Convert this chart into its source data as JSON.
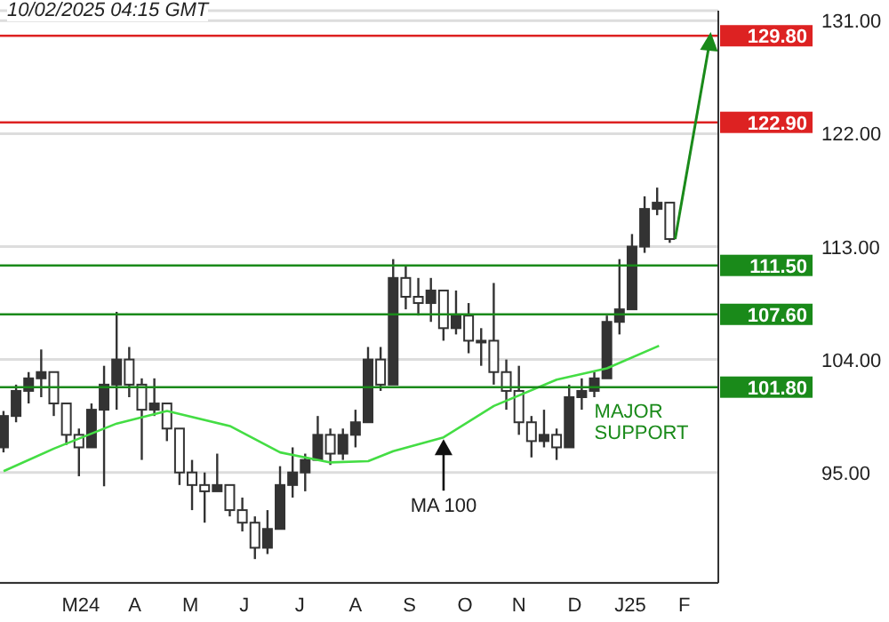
{
  "chart_data": {
    "type": "candlestick",
    "annotations": [
      "10/02/2025 04:15 GMT",
      {
        "text": "MA 100",
        "x": "2024-10-04",
        "y": 97.8
      },
      {
        "text": "MAJOR SUPPORT",
        "x": "2024-12-27",
        "y": 101.8
      }
    ],
    "series": [
      {
        "type": "candlestick",
        "color": "#333333",
        "x": [
          "2024-02-02",
          "2024-02-09",
          "2024-02-16",
          "2024-02-23",
          "2024-03-01",
          "2024-03-08",
          "2024-03-15",
          "2024-03-22",
          "2024-03-29",
          "2024-04-05",
          "2024-04-12",
          "2024-04-19",
          "2024-04-26",
          "2024-05-03",
          "2024-05-10",
          "2024-05-17",
          "2024-05-24",
          "2024-05-31",
          "2024-06-07",
          "2024-06-14",
          "2024-06-21",
          "2024-06-28",
          "2024-07-05",
          "2024-07-12",
          "2024-07-19",
          "2024-07-26",
          "2024-08-02",
          "2024-08-09",
          "2024-08-16",
          "2024-08-23",
          "2024-08-30",
          "2024-09-06",
          "2024-09-13",
          "2024-09-20",
          "2024-09-27",
          "2024-10-04",
          "2024-10-11",
          "2024-10-18",
          "2024-10-25",
          "2024-11-01",
          "2024-11-08",
          "2024-11-15",
          "2024-11-22",
          "2024-11-29",
          "2024-12-06",
          "2024-12-13",
          "2024-12-20",
          "2024-12-27",
          "2025-01-03",
          "2025-01-10",
          "2025-01-17",
          "2025-01-24",
          "2025-01-31",
          "2025-02-07"
        ],
        "ohlc": [
          [
            97,
            99.9,
            96.6,
            99.5
          ],
          [
            99.5,
            102,
            99,
            101.5
          ],
          [
            101.5,
            103,
            100.5,
            102.5
          ],
          [
            102.5,
            104.8,
            101,
            103
          ],
          [
            103,
            103,
            99.5,
            100.5
          ],
          [
            100.5,
            100.5,
            97.2,
            98
          ],
          [
            98,
            98.5,
            94.7,
            97
          ],
          [
            97,
            100.5,
            97,
            100
          ],
          [
            100,
            103.5,
            93.9,
            102
          ],
          [
            102,
            107.8,
            100,
            104
          ],
          [
            104,
            105,
            101,
            102
          ],
          [
            102,
            102.5,
            96,
            100
          ],
          [
            100,
            102.5,
            99.5,
            100.5
          ],
          [
            100.5,
            100.5,
            97.5,
            98.5
          ],
          [
            98.5,
            98.5,
            94,
            95
          ],
          [
            95,
            96,
            92,
            94
          ],
          [
            94,
            95,
            91,
            93.5
          ],
          [
            93.5,
            96.5,
            93.5,
            94
          ],
          [
            94,
            94,
            91.5,
            92
          ],
          [
            92,
            93,
            90.3,
            91
          ],
          [
            91,
            91.5,
            88.1,
            89
          ],
          [
            89,
            92,
            88.5,
            90.5
          ],
          [
            90.5,
            95.5,
            90.5,
            94
          ],
          [
            94,
            97,
            93,
            95
          ],
          [
            95,
            96.5,
            93.5,
            96
          ],
          [
            96,
            99.5,
            96,
            98
          ],
          [
            98,
            98.5,
            95.6,
            96.5
          ],
          [
            96.5,
            98.5,
            96,
            98
          ],
          [
            98,
            100,
            97,
            99
          ],
          [
            99,
            105,
            99,
            104
          ],
          [
            104,
            105,
            101.5,
            102
          ],
          [
            102,
            112,
            102,
            110.5
          ],
          [
            110.5,
            111.5,
            108,
            109
          ],
          [
            109,
            110.5,
            107.5,
            108.5
          ],
          [
            108.5,
            110.5,
            107,
            109.5
          ],
          [
            109.5,
            109.5,
            105.5,
            106.5
          ],
          [
            106.5,
            109.5,
            106,
            107.5
          ],
          [
            107.5,
            108.5,
            104.5,
            105.5
          ],
          [
            105.5,
            106.5,
            103.5,
            105.5
          ],
          [
            105.5,
            110.1,
            102,
            103
          ],
          [
            103,
            104,
            100,
            101.5
          ],
          [
            101.5,
            103.5,
            98,
            99
          ],
          [
            99,
            99.5,
            96.2,
            97.5
          ],
          [
            97.5,
            100,
            97,
            98
          ],
          [
            98,
            98.5,
            96,
            97
          ],
          [
            97,
            102,
            97,
            101
          ],
          [
            101,
            102.5,
            100,
            101.5
          ],
          [
            101.5,
            103,
            101,
            102.5
          ],
          [
            102.5,
            107.5,
            102.5,
            107
          ],
          [
            107,
            112,
            106,
            108
          ],
          [
            108,
            114,
            108,
            113
          ],
          [
            113,
            117,
            112.5,
            116
          ],
          [
            116,
            117.7,
            115.5,
            116.5
          ],
          [
            116.5,
            116.5,
            113.3,
            113.6
          ]
        ]
      },
      {
        "type": "line",
        "color": "#44dd44",
        "x": [
          "2024-02-02",
          "2024-03-01",
          "2024-04-05",
          "2024-05-03",
          "2024-06-07",
          "2024-07-05",
          "2024-08-02",
          "2024-08-23",
          "2024-09-06",
          "2024-10-04",
          "2024-11-01",
          "2024-12-06",
          "2025-01-03",
          "2025-02-01"
        ],
        "values": [
          95.1,
          96.9,
          98.9,
          99.9,
          98.7,
          96.6,
          95.8,
          95.9,
          96.7,
          97.8,
          100.3,
          102.4,
          103.3,
          105.1
        ]
      }
    ],
    "xlim": [
      "2024-01-31",
      "2025-03-06"
    ],
    "xticks": [
      {
        "value": "2024-03-16",
        "label": "M24"
      },
      {
        "value": "2024-04-15",
        "label": "A"
      },
      {
        "value": "2024-05-16",
        "label": "M"
      },
      {
        "value": "2024-06-15",
        "label": "J"
      },
      {
        "value": "2024-07-16",
        "label": "J"
      },
      {
        "value": "2024-08-16",
        "label": "A"
      },
      {
        "value": "2024-09-15",
        "label": "S"
      },
      {
        "value": "2024-10-16",
        "label": "O"
      },
      {
        "value": "2024-11-15",
        "label": "N"
      },
      {
        "value": "2024-12-16",
        "label": "D"
      },
      {
        "value": "2025-01-16",
        "label": "J25"
      },
      {
        "value": "2025-02-15",
        "label": "F"
      }
    ],
    "ylim": [
      86.2,
      131.8
    ],
    "yticks": [
      {
        "value": 95,
        "label": "95.00"
      },
      {
        "value": 104,
        "label": "104.00"
      },
      {
        "value": 113,
        "label": "113.00"
      },
      {
        "value": 122,
        "label": "122.00"
      },
      {
        "value": 131,
        "label": "131.00"
      }
    ],
    "grid": "y",
    "ref_lines": [
      {
        "axis": "y",
        "value": 129.8,
        "label": "129.80",
        "color": "#dd2222"
      },
      {
        "axis": "y",
        "value": 122.9,
        "label": "122.90",
        "color": "#dd2222"
      },
      {
        "axis": "y",
        "value": 111.5,
        "label": "111.50",
        "color": "#1a8a1a"
      },
      {
        "axis": "y",
        "value": 107.6,
        "label": "107.60",
        "color": "#1a8a1a"
      },
      {
        "axis": "y",
        "value": 101.8,
        "label": "101.80",
        "color": "#1a8a1a"
      }
    ]
  }
}
